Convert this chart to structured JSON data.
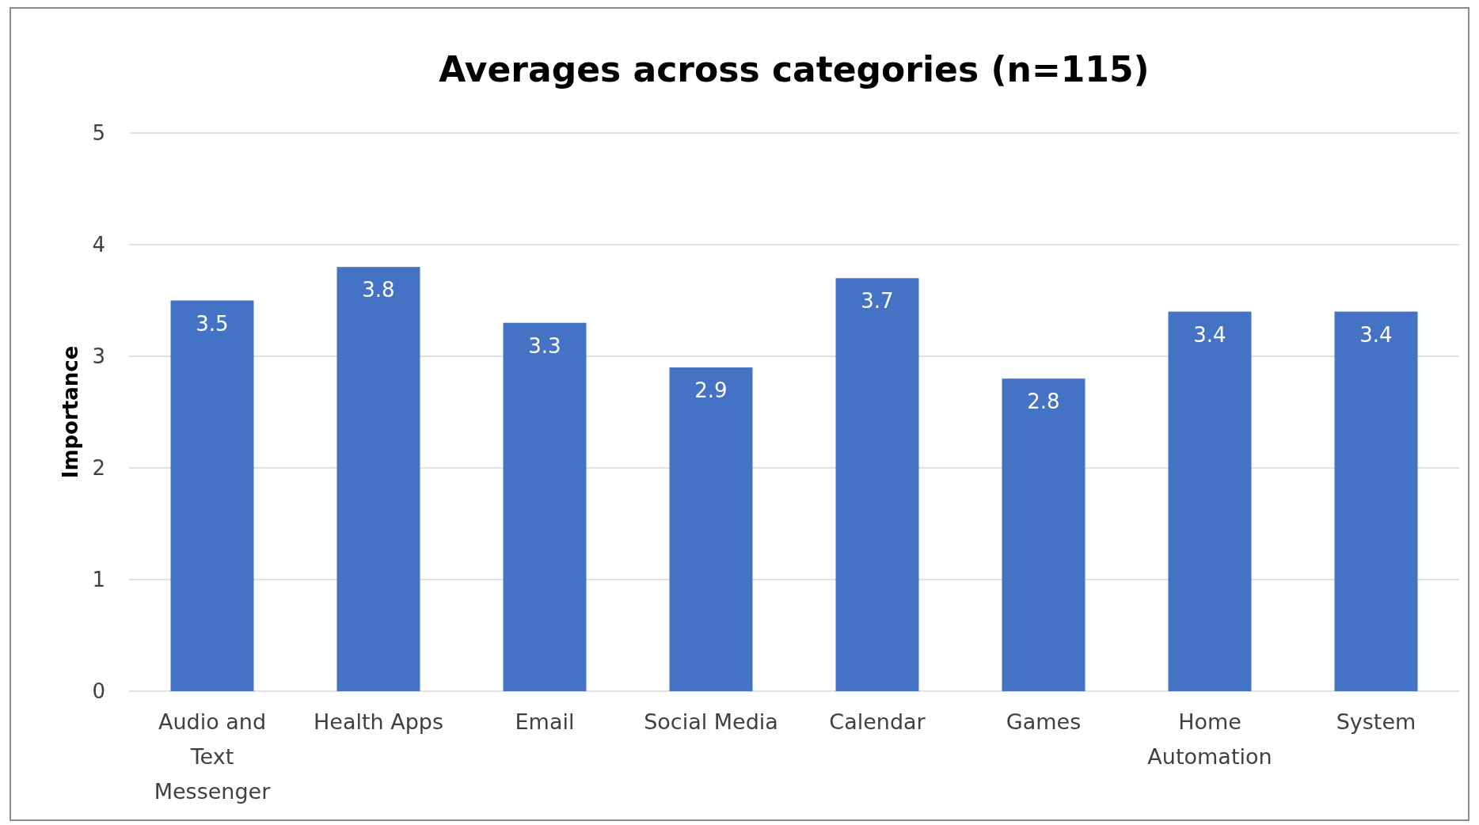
{
  "chart_data": {
    "type": "bar",
    "title": "Averages across categories (n=115)",
    "ylabel": "Importance",
    "categories": [
      "Audio and Text Messenger",
      "Health Apps",
      "Email",
      "Social Media",
      "Calendar",
      "Games",
      "Home Automation",
      "System"
    ],
    "values": [
      3.5,
      3.8,
      3.3,
      2.9,
      3.7,
      2.8,
      3.4,
      3.4
    ],
    "color": "#4472c4",
    "ylim": [
      0,
      5
    ],
    "yticks": [
      0,
      1,
      2,
      3,
      4,
      5
    ],
    "grid": "y",
    "data_labels": true
  }
}
